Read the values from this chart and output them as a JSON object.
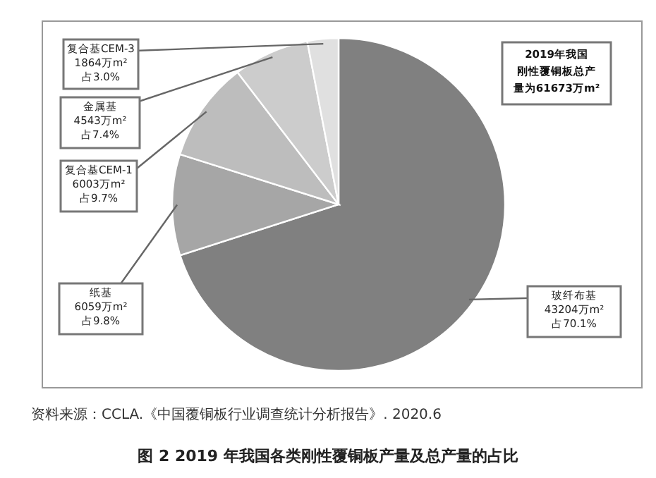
{
  "chart_data": {
    "type": "pie",
    "title": "图 2 2019 年我国各类刚性覆铜板产量及总产量的占比",
    "categories": [
      "玻纤布基",
      "纸基",
      "复合基CEM-1",
      "金属基",
      "复合基CEM-3"
    ],
    "values": [
      43204,
      6059,
      6003,
      4543,
      1864
    ],
    "colors": [
      "#808080",
      "#a6a6a6",
      "#bdbdbd",
      "#cccccc",
      "#e0e0e0"
    ],
    "value_labels": [
      "43204万m²\n占70.1%",
      "6059万m²\n占9.8%",
      "6003万m²\n占9.7%",
      "4543万m²\n占7.4%",
      "1864万m²\n占3.0%"
    ],
    "annotations": [
      "2019年我国刚性覆铜板总产量为61673万m²",
      "资料来源：CCLA.《中国覆铜板行业调查统计分析报告》. 2020.6"
    ]
  }
}
